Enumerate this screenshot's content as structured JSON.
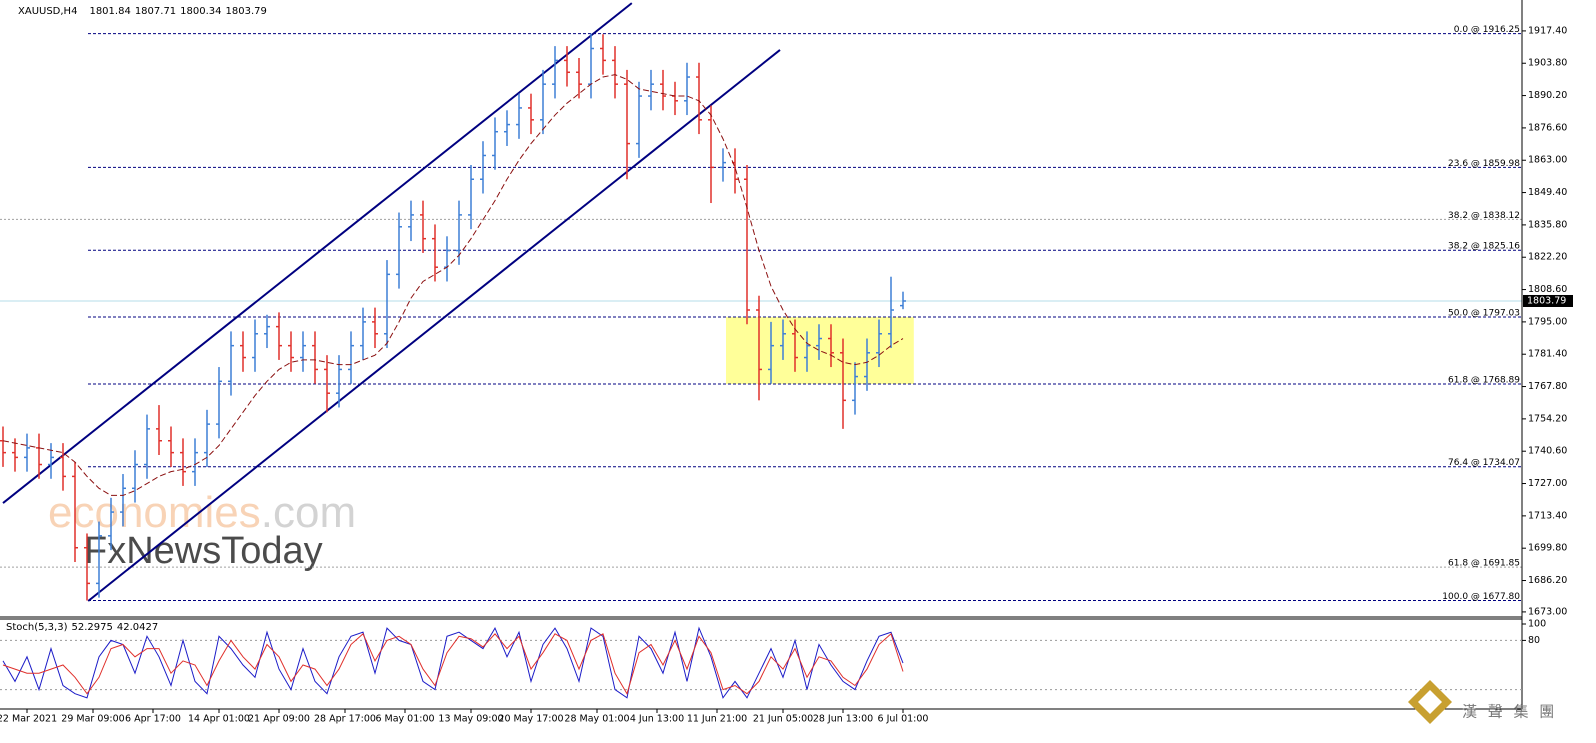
{
  "chart_data": {
    "type": "ohlc",
    "title": "XAUUSD,H4",
    "header_values": [
      1801.84,
      1807.71,
      1800.34,
      1803.79
    ],
    "up_color": "#3d7fd6",
    "down_color": "#e0302b",
    "open": [
      1745,
      1740,
      1738,
      1742,
      1735,
      1738,
      1730,
      1700,
      1685,
      1705,
      1715,
      1725,
      1735,
      1750,
      1745,
      1740,
      1732,
      1740,
      1752,
      1770,
      1785,
      1780,
      1790,
      1793,
      1785,
      1780,
      1785,
      1775,
      1765,
      1775,
      1785,
      1795,
      1790,
      1815,
      1835,
      1840,
      1830,
      1818,
      1825,
      1840,
      1855,
      1865,
      1875,
      1878,
      1885,
      1880,
      1895,
      1905,
      1900,
      1895,
      1910,
      1905,
      1895,
      1870,
      1890,
      1895,
      1890,
      1888,
      1898,
      1880,
      1860,
      1862,
      1855,
      1800,
      1775,
      1785,
      1790,
      1780,
      1785,
      1788,
      1782,
      1762,
      1772,
      1782,
      1790,
      1801.84
    ],
    "high": [
      1751,
      1746,
      1748,
      1748,
      1744,
      1744,
      1736,
      1706,
      1711,
      1721,
      1731,
      1741,
      1756,
      1760,
      1751,
      1746,
      1746,
      1758,
      1776,
      1791,
      1791,
      1796,
      1798,
      1799,
      1791,
      1791,
      1791,
      1781,
      1781,
      1791,
      1801,
      1801,
      1821,
      1841,
      1846,
      1846,
      1836,
      1831,
      1846,
      1861,
      1871,
      1881,
      1884,
      1891,
      1891,
      1901,
      1911,
      1911,
      1906,
      1916.25,
      1916,
      1911,
      1901,
      1896,
      1901,
      1901,
      1896,
      1904,
      1904,
      1886,
      1868,
      1868,
      1861,
      1806,
      1795,
      1796,
      1796,
      1791,
      1794,
      1794,
      1788,
      1778,
      1788,
      1796,
      1814,
      1807.71
    ],
    "low": [
      1734,
      1732,
      1732,
      1729,
      1729,
      1724,
      1694,
      1677.8,
      1679,
      1699,
      1709,
      1719,
      1729,
      1739,
      1734,
      1726,
      1726,
      1734,
      1746,
      1764,
      1774,
      1774,
      1784,
      1779,
      1774,
      1774,
      1769,
      1757,
      1759,
      1769,
      1779,
      1784,
      1784,
      1809,
      1829,
      1824,
      1812,
      1812,
      1819,
      1834,
      1849,
      1859,
      1869,
      1872,
      1874,
      1874,
      1889,
      1894,
      1889,
      1889,
      1899,
      1889,
      1855,
      1864,
      1884,
      1884,
      1882,
      1882,
      1874,
      1845,
      1854,
      1849,
      1794,
      1762,
      1769,
      1779,
      1774,
      1774,
      1779,
      1776,
      1750,
      1756,
      1766,
      1776,
      1784,
      1800.34
    ],
    "close": [
      1740,
      1738,
      1742,
      1735,
      1738,
      1730,
      1700,
      1685,
      1705,
      1715,
      1725,
      1735,
      1750,
      1745,
      1740,
      1732,
      1740,
      1752,
      1770,
      1785,
      1780,
      1790,
      1793,
      1785,
      1780,
      1785,
      1775,
      1765,
      1775,
      1785,
      1795,
      1790,
      1815,
      1835,
      1840,
      1830,
      1818,
      1825,
      1840,
      1855,
      1865,
      1875,
      1878,
      1885,
      1880,
      1895,
      1905,
      1900,
      1895,
      1910,
      1905,
      1895,
      1870,
      1890,
      1895,
      1890,
      1888,
      1898,
      1880,
      1860,
      1862,
      1855,
      1800,
      1775,
      1785,
      1790,
      1780,
      1785,
      1788,
      1782,
      1762,
      1772,
      1782,
      1790,
      1800,
      1803.79
    ],
    "ma": {
      "color": "#8b1010",
      "values": [
        1745,
        1744,
        1743,
        1742,
        1741,
        1740,
        1736,
        1730,
        1725,
        1722,
        1722,
        1724,
        1727,
        1730,
        1732,
        1733,
        1735,
        1738,
        1743,
        1750,
        1757,
        1764,
        1770,
        1775,
        1778,
        1779,
        1779,
        1778,
        1777,
        1777,
        1779,
        1781,
        1786,
        1795,
        1805,
        1812,
        1815,
        1818,
        1823,
        1830,
        1838,
        1846,
        1855,
        1863,
        1870,
        1876,
        1882,
        1887,
        1891,
        1895,
        1898,
        1899,
        1897,
        1893,
        1892,
        1891,
        1890,
        1890,
        1888,
        1882,
        1872,
        1860,
        1843,
        1825,
        1810,
        1800,
        1792,
        1786,
        1783,
        1781,
        1778,
        1777,
        1778,
        1781,
        1785,
        1788
      ]
    },
    "xticks": [
      {
        "value": 2,
        "label": "22 Mar 2021"
      },
      {
        "value": 7.5,
        "label": "29 Mar 09:00"
      },
      {
        "value": 12.5,
        "label": "6 Apr 17:00"
      },
      {
        "value": 18,
        "label": "14 Apr 01:00"
      },
      {
        "value": 23,
        "label": "21 Apr 09:00"
      },
      {
        "value": 28.5,
        "label": "28 Apr 17:00"
      },
      {
        "value": 33.5,
        "label": "6 May 01:00"
      },
      {
        "value": 39,
        "label": "13 May 09:00"
      },
      {
        "value": 44,
        "label": "20 May 17:00"
      },
      {
        "value": 49.5,
        "label": "28 May 01:00"
      },
      {
        "value": 54.5,
        "label": "4 Jun 13:00"
      },
      {
        "value": 59.5,
        "label": "11 Jun 21:00"
      },
      {
        "value": 65,
        "label": "21 Jun 05:00"
      },
      {
        "value": 70,
        "label": "28 Jun 13:00"
      },
      {
        "value": 75,
        "label": "6 Jul 01:00"
      }
    ],
    "ylim": [
      1671.7,
      1928.3
    ],
    "yticks": [
      {
        "value": 1917.4,
        "label": "1917.40"
      },
      {
        "value": 1903.8,
        "label": "1903.80"
      },
      {
        "value": 1890.2,
        "label": "1890.20"
      },
      {
        "value": 1876.6,
        "label": "1876.60"
      },
      {
        "value": 1863,
        "label": "1863.00"
      },
      {
        "value": 1849.4,
        "label": "1849.40"
      },
      {
        "value": 1835.8,
        "label": "1835.80"
      },
      {
        "value": 1822.2,
        "label": "1822.20"
      },
      {
        "value": 1808.6,
        "label": "1808.60"
      },
      {
        "value": 1795,
        "label": "1795.00"
      },
      {
        "value": 1781.4,
        "label": "1781.40"
      },
      {
        "value": 1767.8,
        "label": "1767.80"
      },
      {
        "value": 1754.2,
        "label": "1754.20"
      },
      {
        "value": 1740.6,
        "label": "1740.60"
      },
      {
        "value": 1727,
        "label": "1727.00"
      },
      {
        "value": 1713.4,
        "label": "1713.40"
      },
      {
        "value": 1699.8,
        "label": "1699.80"
      },
      {
        "value": 1686.2,
        "label": "1686.20"
      },
      {
        "value": 1673,
        "label": "1673.00"
      }
    ],
    "last_price": 1803.79,
    "fib_levels": [
      {
        "value": 1916.25,
        "label": "0.0 @ 1916.25",
        "color": "#000080"
      },
      {
        "value": 1859.98,
        "label": "23.6 @ 1859.98",
        "color": "#000080"
      },
      {
        "value": 1838.12,
        "label": "38.2 @ 1838.12",
        "color": "#a0a0a0"
      },
      {
        "value": 1825.16,
        "label": "38.2 @ 1825.16",
        "color": "#000080"
      },
      {
        "value": 1797.03,
        "label": "50.0 @ 1797.03",
        "color": "#000080"
      },
      {
        "value": 1768.89,
        "label": "61.8 @ 1768.89",
        "color": "#000080"
      },
      {
        "value": 1734.07,
        "label": "76.4 @ 1734.07",
        "color": "#000080"
      },
      {
        "value": 1691.85,
        "label": "61.8 @ 1691.85",
        "color": "#a0a0a0"
      },
      {
        "value": 1677.8,
        "label": "100.0 @ 1677.80",
        "color": "#000080"
      }
    ],
    "channel": {
      "color": "#000080",
      "lines": [
        {
          "x": [
            0,
            52.4
          ],
          "y": [
            1718.8,
            1929.1
          ]
        },
        {
          "x": [
            7.1,
            64.75
          ],
          "y": [
            1677.6,
            1909.4
          ]
        }
      ]
    },
    "zone": {
      "color": "#ffff99",
      "x": [
        60.25,
        75.9
      ],
      "y": [
        1768.89,
        1797.03
      ]
    },
    "watermark": {
      "brand": "economies",
      "suffix": ".com",
      "sub": "FxNewsToday"
    },
    "logo": "漢 聲 集 團",
    "indicator": {
      "title": "Stoch(5,3,3)",
      "values": [
        52.2975,
        42.0427
      ],
      "ylim": [
        0,
        100
      ],
      "yticks": [
        100,
        80
      ],
      "levels": [
        80,
        20
      ],
      "series": [
        {
          "color": "#1c1cc8",
          "values": [
            55,
            30,
            60,
            20,
            70,
            25,
            15,
            10,
            60,
            80,
            75,
            40,
            85,
            60,
            25,
            80,
            30,
            15,
            85,
            70,
            50,
            35,
            90,
            45,
            20,
            70,
            30,
            15,
            60,
            85,
            90,
            40,
            95,
            80,
            75,
            30,
            20,
            85,
            90,
            80,
            70,
            95,
            60,
            90,
            30,
            75,
            95,
            70,
            30,
            95,
            85,
            20,
            10,
            85,
            70,
            40,
            90,
            30,
            95,
            60,
            10,
            30,
            10,
            40,
            70,
            35,
            80,
            20,
            75,
            50,
            30,
            20,
            55,
            85,
            90,
            52.2975
          ]
        },
        {
          "color": "#e0302b",
          "values": [
            50,
            45,
            40,
            40,
            45,
            50,
            35,
            15,
            35,
            70,
            75,
            60,
            70,
            70,
            40,
            55,
            50,
            25,
            55,
            80,
            60,
            45,
            75,
            60,
            30,
            50,
            45,
            25,
            45,
            75,
            88,
            55,
            80,
            85,
            75,
            45,
            25,
            65,
            85,
            82,
            72,
            88,
            70,
            85,
            45,
            65,
            88,
            80,
            45,
            80,
            88,
            40,
            15,
            65,
            75,
            50,
            80,
            45,
            85,
            65,
            20,
            25,
            15,
            30,
            60,
            45,
            70,
            35,
            60,
            55,
            35,
            25,
            45,
            75,
            88,
            42.0427
          ]
        }
      ]
    }
  }
}
